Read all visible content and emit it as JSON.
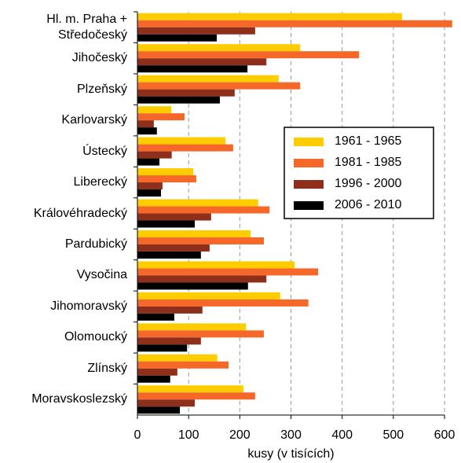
{
  "chart_data": {
    "type": "hbar",
    "categories": [
      "Hl. m. Praha +\nStředočeský",
      "Jihočeský",
      "Plzeňský",
      "Karlovarský",
      "Ústecký",
      "Liberecký",
      "Královéhradecký",
      "Pardubický",
      "Vysočina",
      "Jihomoravský",
      "Olomoucký",
      "Zlínský",
      "Moravskoslezský"
    ],
    "series": [
      {
        "name": "1961 - 1965",
        "color": "#ffcc00",
        "values": [
          517,
          318,
          276,
          66,
          172,
          109,
          236,
          221,
          307,
          279,
          212,
          156,
          207
        ]
      },
      {
        "name": "1981 - 1985",
        "color": "#f6682a",
        "values": [
          615,
          433,
          318,
          92,
          187,
          115,
          258,
          247,
          353,
          334,
          247,
          178,
          230
        ]
      },
      {
        "name": "1996 - 2000",
        "color": "#8e2f1c",
        "values": [
          230,
          252,
          190,
          32,
          67,
          49,
          144,
          141,
          252,
          127,
          124,
          78,
          112
        ]
      },
      {
        "name": "2006 - 2010",
        "color": "#000000",
        "values": [
          155,
          215,
          161,
          38,
          43,
          46,
          112,
          124,
          216,
          72,
          97,
          64,
          83
        ]
      }
    ],
    "xlabel": "kusy (v tisících)",
    "xlim": [
      0,
      600
    ],
    "xticks": [
      0,
      100,
      200,
      300,
      400,
      500,
      600
    ],
    "grid": true,
    "legend": "right"
  }
}
